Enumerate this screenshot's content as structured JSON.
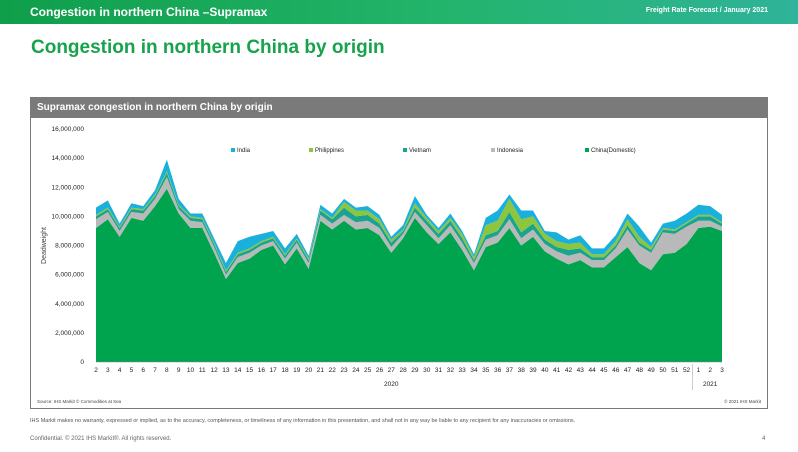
{
  "header": {
    "left_title": "Congestion in northern China –Supramax",
    "right_title": "Freight Rate Forecast / January 2021"
  },
  "heading": "Congestion in northern China by origin",
  "panel_title": "Supramax congestion in northern China by origin",
  "source": "Source: IHS Markit © Commodities at Sea",
  "panel_copyright": "© 2021 IHS Markit",
  "disclaimer": "IHS Markit makes no warranty, expressed or implied, as to the accuracy, completeness, or timeliness of any information in this presentation, and shall not in any way be liable to any recipient for any inaccuracies or omissions.",
  "footer": "Confidential. © 2021 IHS Markit®. All rights reserved.",
  "page_number": "4",
  "colors": {
    "brand_green": "#17a24c",
    "china": "#00a44f",
    "indonesia": "#b9b9b9",
    "vietnam": "#1aa38f",
    "philippines": "#8cc63f",
    "india": "#1ab0dc"
  },
  "chart_data": {
    "type": "area",
    "stacked": true,
    "ylabel": "Deadweight",
    "ylim": [
      0,
      16000000
    ],
    "yticks": [
      "0",
      "2,000,000",
      "4,000,000",
      "6,000,000",
      "8,000,000",
      "10,000,000",
      "12,000,000",
      "14,000,000",
      "16,000,000"
    ],
    "ytick_values": [
      0,
      2000000,
      4000000,
      6000000,
      8000000,
      10000000,
      12000000,
      14000000,
      16000000
    ],
    "categories": [
      "2",
      "3",
      "4",
      "5",
      "6",
      "7",
      "8",
      "9",
      "10",
      "11",
      "12",
      "13",
      "14",
      "15",
      "16",
      "17",
      "18",
      "19",
      "20",
      "21",
      "22",
      "23",
      "24",
      "25",
      "26",
      "27",
      "28",
      "29",
      "30",
      "31",
      "32",
      "33",
      "34",
      "35",
      "36",
      "37",
      "38",
      "39",
      "40",
      "41",
      "42",
      "43",
      "44",
      "45",
      "46",
      "47",
      "48",
      "49",
      "50",
      "51",
      "52",
      "1",
      "2",
      "3"
    ],
    "year_groups": [
      {
        "label": "2020",
        "from": 0,
        "to": 50
      },
      {
        "label": "2021",
        "from": 51,
        "to": 53
      }
    ],
    "legend_position": "top",
    "series": [
      {
        "name": "China(Domestic)",
        "color": "#00a44f",
        "values": [
          9200000,
          9800000,
          8600000,
          9900000,
          9700000,
          10700000,
          11900000,
          10200000,
          9200000,
          9200000,
          7500000,
          5700000,
          6800000,
          7100000,
          7700000,
          8000000,
          6700000,
          7800000,
          6400000,
          9700000,
          9100000,
          9700000,
          9100000,
          9200000,
          8700000,
          7500000,
          8500000,
          9900000,
          8900000,
          8100000,
          8900000,
          7700000,
          6300000,
          7900000,
          8200000,
          9200000,
          8000000,
          8600000,
          7600000,
          7100000,
          6700000,
          7000000,
          6500000,
          6500000,
          7200000,
          7900000,
          6800000,
          6300000,
          7400000,
          7500000,
          8100000,
          9200000,
          9300000,
          9000000
        ]
      },
      {
        "name": "Indonesia",
        "color": "#b9b9b9",
        "values": [
          600000,
          500000,
          400000,
          400000,
          500000,
          500000,
          800000,
          300000,
          500000,
          400000,
          400000,
          300000,
          400000,
          400000,
          300000,
          300000,
          400000,
          400000,
          400000,
          400000,
          400000,
          400000,
          500000,
          500000,
          500000,
          400000,
          300000,
          400000,
          500000,
          400000,
          500000,
          500000,
          500000,
          500000,
          500000,
          600000,
          500000,
          500000,
          500000,
          500000,
          600000,
          500000,
          500000,
          500000,
          600000,
          1200000,
          1200000,
          1200000,
          1500000,
          1300000,
          1200000,
          500000,
          400000,
          300000
        ]
      },
      {
        "name": "Vietnam",
        "color": "#1aa38f",
        "values": [
          200000,
          200000,
          200000,
          200000,
          200000,
          200000,
          300000,
          200000,
          200000,
          200000,
          200000,
          200000,
          200000,
          200000,
          200000,
          200000,
          200000,
          200000,
          200000,
          300000,
          300000,
          500000,
          400000,
          400000,
          300000,
          300000,
          200000,
          300000,
          300000,
          300000,
          300000,
          300000,
          200000,
          300000,
          300000,
          500000,
          400000,
          400000,
          300000,
          300000,
          400000,
          300000,
          200000,
          200000,
          200000,
          300000,
          200000,
          200000,
          200000,
          200000,
          200000,
          300000,
          300000,
          200000
        ]
      },
      {
        "name": "Philippines",
        "color": "#8cc63f",
        "values": [
          100000,
          100000,
          100000,
          100000,
          100000,
          100000,
          100000,
          100000,
          100000,
          100000,
          100000,
          100000,
          100000,
          100000,
          100000,
          100000,
          100000,
          100000,
          100000,
          100000,
          100000,
          400000,
          400000,
          300000,
          300000,
          200000,
          100000,
          300000,
          200000,
          200000,
          200000,
          300000,
          200000,
          700000,
          700000,
          900000,
          900000,
          500000,
          400000,
          400000,
          400000,
          400000,
          200000,
          200000,
          300000,
          400000,
          400000,
          200000,
          100000,
          100000,
          100000,
          100000,
          100000,
          100000
        ]
      },
      {
        "name": "India",
        "color": "#1ab0dc",
        "values": [
          500000,
          500000,
          200000,
          300000,
          200000,
          300000,
          800000,
          400000,
          200000,
          300000,
          300000,
          500000,
          800000,
          800000,
          500000,
          400000,
          400000,
          300000,
          200000,
          300000,
          300000,
          200000,
          200000,
          300000,
          300000,
          200000,
          300000,
          500000,
          200000,
          200000,
          300000,
          200000,
          200000,
          500000,
          700000,
          300000,
          600000,
          400000,
          200000,
          600000,
          300000,
          500000,
          400000,
          400000,
          400000,
          400000,
          700000,
          300000,
          300000,
          600000,
          600000,
          700000,
          600000,
          500000
        ]
      }
    ]
  }
}
